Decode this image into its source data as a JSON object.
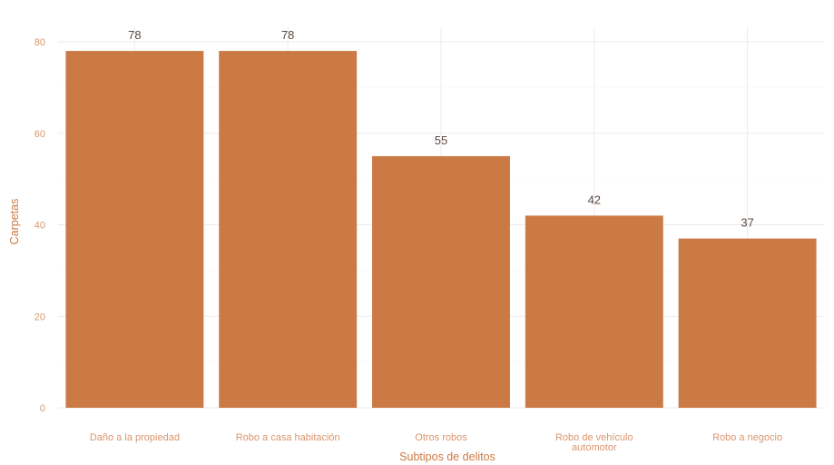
{
  "chart_data": {
    "type": "bar",
    "categories": [
      "Daño a la propiedad",
      "Robo a casa habitación",
      "Otros robos",
      "Robo de vehículo automotor",
      "Robo a negocio"
    ],
    "category_lines": [
      [
        "Daño a la propiedad"
      ],
      [
        "Robo a casa habitación"
      ],
      [
        "Otros robos"
      ],
      [
        "Robo de vehículo",
        "automotor"
      ],
      [
        "Robo a negocio"
      ]
    ],
    "values": [
      78,
      78,
      55,
      42,
      37
    ],
    "data_labels": [
      "78",
      "78",
      "55",
      "42",
      "37"
    ],
    "xlabel": "Subtipos de delitos",
    "ylabel": "Carpetas",
    "ylim": [
      0,
      80
    ],
    "yticks": [
      0,
      20,
      40,
      60,
      80
    ],
    "grid": true,
    "colors": {
      "bar": "#cc7a45",
      "axis_text": "#d9956e",
      "data_label": "#5a4a40",
      "grid": "#ebebeb"
    }
  }
}
